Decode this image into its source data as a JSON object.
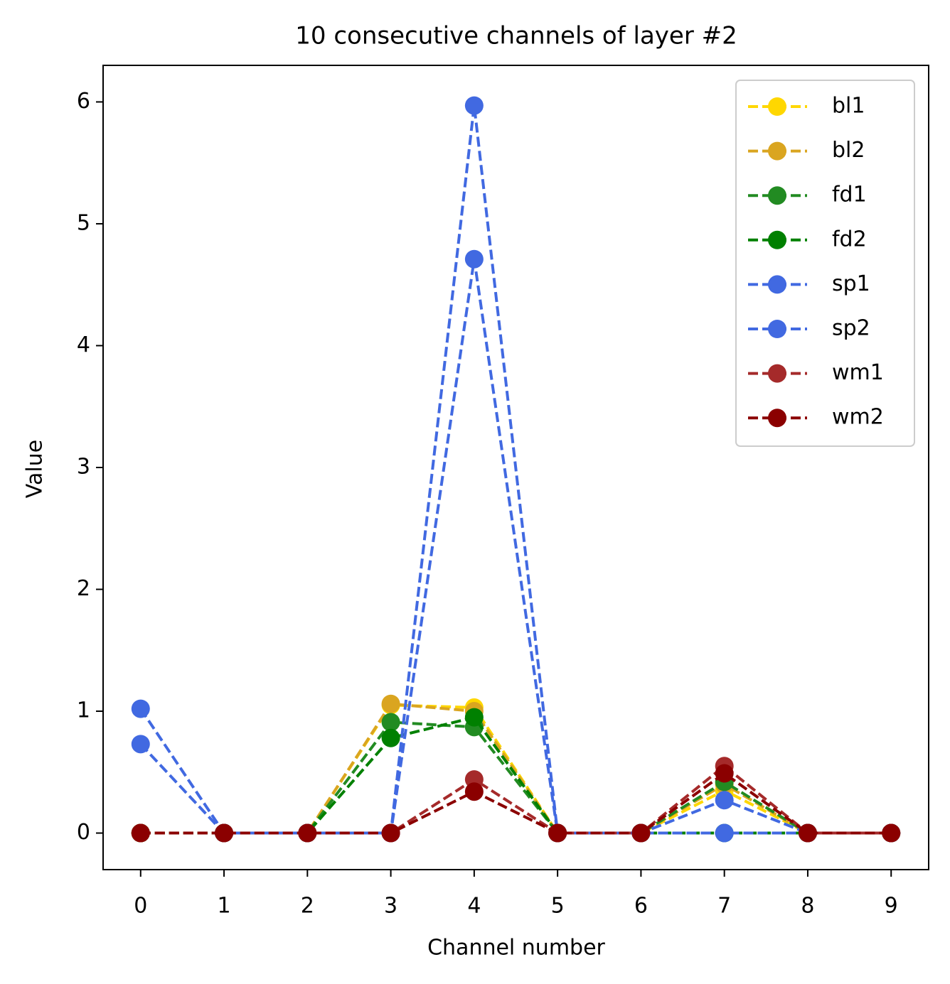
{
  "chart_data": {
    "type": "line",
    "title": "10 consecutive channels of layer #2",
    "x_label": "Channel number",
    "y_label": "Value",
    "x": [
      0,
      1,
      2,
      3,
      4,
      5,
      6,
      7,
      8,
      9
    ],
    "series": [
      {
        "name": "bl1",
        "color": "#FFD700",
        "values": [
          0,
          0,
          0,
          1.05,
          1.03,
          0,
          0,
          0.35,
          0,
          0
        ]
      },
      {
        "name": "bl2",
        "color": "#DAA520",
        "values": [
          0,
          0,
          0,
          1.06,
          1.0,
          0,
          0,
          0.4,
          0,
          0
        ]
      },
      {
        "name": "fd1",
        "color": "#228B22",
        "values": [
          0,
          0,
          0,
          0.91,
          0.87,
          0,
          0,
          0.42,
          0,
          0
        ]
      },
      {
        "name": "fd2",
        "color": "#008000",
        "values": [
          0,
          0,
          0,
          0.78,
          0.95,
          0,
          0,
          0,
          0,
          0
        ]
      },
      {
        "name": "sp1",
        "color": "#4169E1",
        "values": [
          1.02,
          0,
          0,
          0,
          5.97,
          0,
          0,
          0.27,
          0,
          0
        ]
      },
      {
        "name": "sp2",
        "color": "#4169E1",
        "values": [
          0.73,
          0,
          0,
          0,
          4.71,
          0,
          0,
          0,
          0,
          0
        ]
      },
      {
        "name": "wm1",
        "color": "#A52A2A",
        "values": [
          0,
          0,
          0,
          0,
          0.44,
          0,
          0,
          0.55,
          0,
          0
        ]
      },
      {
        "name": "wm2",
        "color": "#8B0000",
        "values": [
          0,
          0,
          0,
          0,
          0.34,
          0,
          0,
          0.49,
          0,
          0
        ]
      }
    ],
    "xlim": [
      -0.45,
      9.45
    ],
    "ylim": [
      -0.3,
      6.3
    ],
    "xticks": [
      0,
      1,
      2,
      3,
      4,
      5,
      6,
      7,
      8,
      9
    ],
    "yticks": [
      0,
      1,
      2,
      3,
      4,
      5,
      6
    ],
    "grid": false,
    "legend": "upper right"
  }
}
